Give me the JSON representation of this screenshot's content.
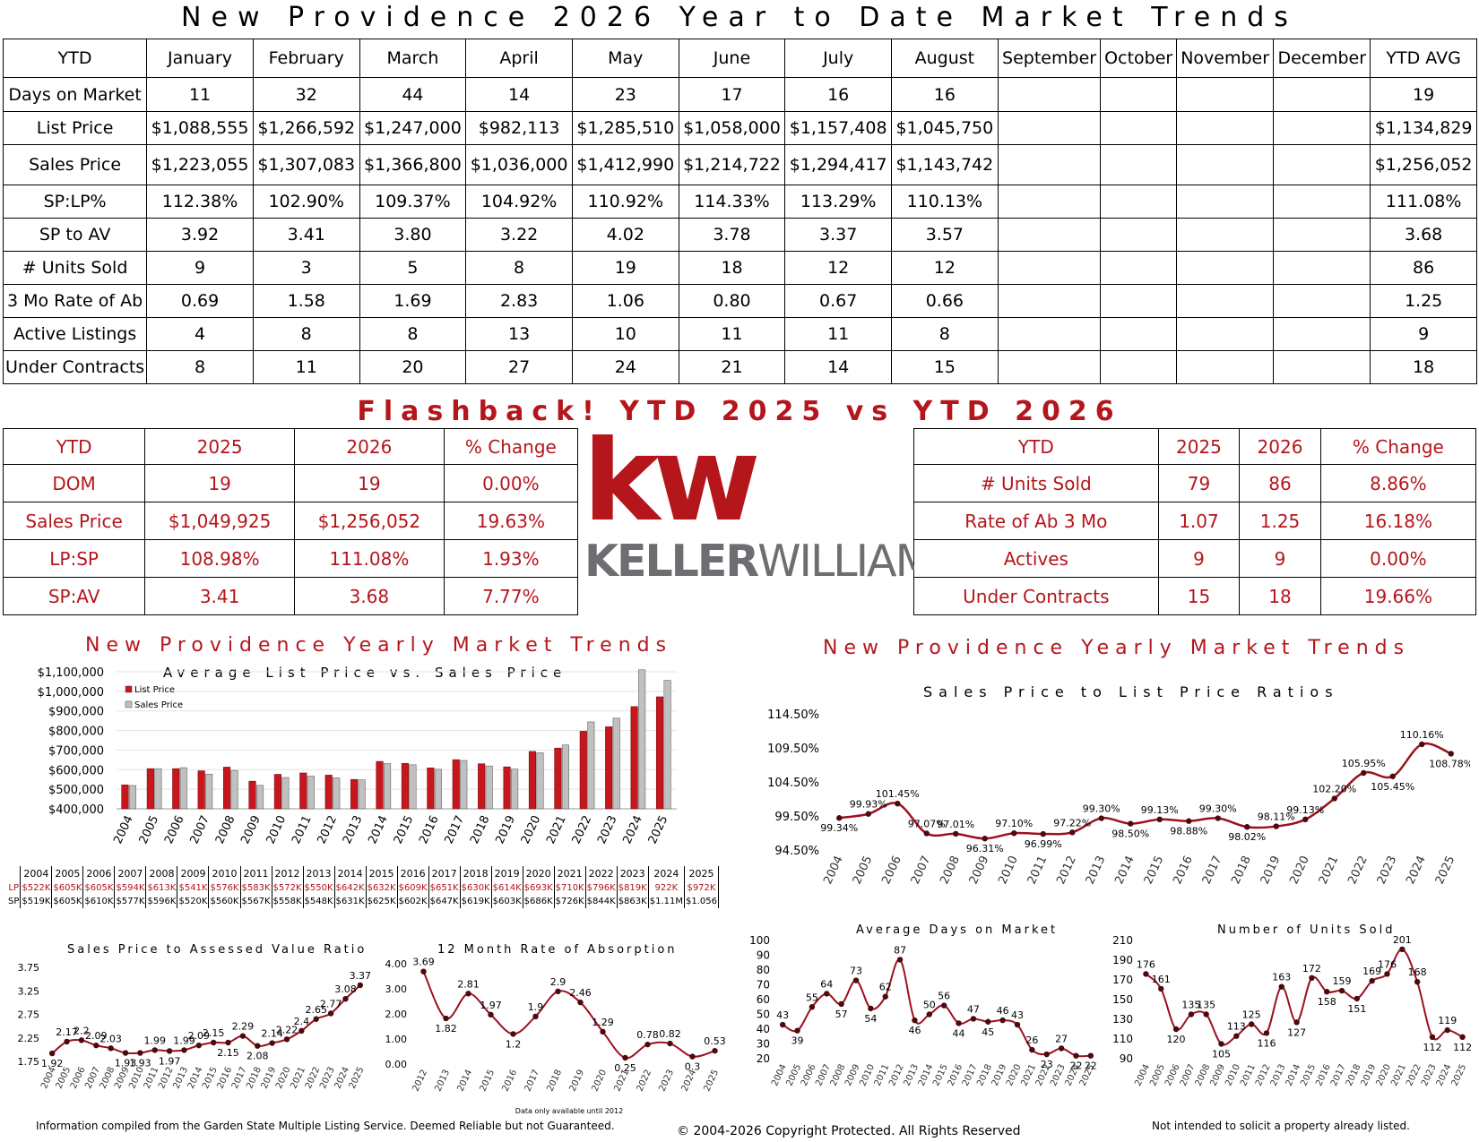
{
  "title": "New Providence 2026 Year to Date Market Trends",
  "ytd": {
    "headers": [
      "YTD",
      "January",
      "February",
      "March",
      "April",
      "May",
      "June",
      "July",
      "August",
      "September",
      "October",
      "November",
      "December",
      "YTD AVG"
    ],
    "rows": [
      {
        "label": "Days on Market",
        "values": [
          "11",
          "32",
          "44",
          "14",
          "23",
          "17",
          "16",
          "16",
          "",
          "",
          "",
          "",
          "19"
        ]
      },
      {
        "label": "List Price",
        "values": [
          "$1,088,555",
          "$1,266,592",
          "$1,247,000",
          "$982,113",
          "$1,285,510",
          "$1,058,000",
          "$1,157,408",
          "$1,045,750",
          "",
          "",
          "",
          "",
          "$1,134,829"
        ]
      },
      {
        "label": "Sales Price",
        "values": [
          "$1,223,055",
          "$1,307,083",
          "$1,366,800",
          "$1,036,000",
          "$1,412,990",
          "$1,214,722",
          "$1,294,417",
          "$1,143,742",
          "",
          "",
          "",
          "",
          "$1,256,052"
        ]
      },
      {
        "label": "SP:LP%",
        "values": [
          "112.38%",
          "102.90%",
          "109.37%",
          "104.92%",
          "110.92%",
          "114.33%",
          "113.29%",
          "110.13%",
          "",
          "",
          "",
          "",
          "111.08%"
        ]
      },
      {
        "label": "SP to AV",
        "values": [
          "3.92",
          "3.41",
          "3.80",
          "3.22",
          "4.02",
          "3.78",
          "3.37",
          "3.57",
          "",
          "",
          "",
          "",
          "3.68"
        ]
      },
      {
        "label": "# Units Sold",
        "values": [
          "9",
          "3",
          "5",
          "8",
          "19",
          "18",
          "12",
          "12",
          "",
          "",
          "",
          "",
          "86"
        ]
      },
      {
        "label": "3 Mo Rate of Ab",
        "values": [
          "0.69",
          "1.58",
          "1.69",
          "2.83",
          "1.06",
          "0.80",
          "0.67",
          "0.66",
          "",
          "",
          "",
          "",
          "1.25"
        ]
      },
      {
        "label": "Active Listings",
        "values": [
          "4",
          "8",
          "8",
          "13",
          "10",
          "11",
          "11",
          "8",
          "",
          "",
          "",
          "",
          "9"
        ]
      },
      {
        "label": "Under Contracts",
        "values": [
          "8",
          "11",
          "20",
          "27",
          "24",
          "21",
          "14",
          "15",
          "",
          "",
          "",
          "",
          "18"
        ]
      }
    ]
  },
  "flashback": {
    "title": "Flashback! YTD 2025 vs YTD 2026",
    "headers": [
      "YTD",
      "2025",
      "2026",
      "% Change"
    ],
    "left": [
      {
        "label": "DOM",
        "y2025": "19",
        "y2026": "19",
        "change": "0.00%"
      },
      {
        "label": "Sales Price",
        "y2025": "$1,049,925",
        "y2026": "$1,256,052",
        "change": "19.63%"
      },
      {
        "label": "LP:SP",
        "y2025": "108.98%",
        "y2026": "111.08%",
        "change": "1.93%"
      },
      {
        "label": "SP:AV",
        "y2025": "3.41",
        "y2026": "3.68",
        "change": "7.77%"
      }
    ],
    "right": [
      {
        "label": "# Units Sold",
        "y2025": "79",
        "y2026": "86",
        "change": "8.86%"
      },
      {
        "label": "Rate of Ab 3 Mo",
        "y2025": "1.07",
        "y2026": "1.25",
        "change": "16.18%"
      },
      {
        "label": "Actives",
        "y2025": "9",
        "y2026": "9",
        "change": "0.00%"
      },
      {
        "label": "Under Contracts",
        "y2025": "15",
        "y2026": "18",
        "change": "19.66%"
      }
    ]
  },
  "logo": {
    "mark": "kw",
    "brand_a": "KELLER",
    "brand_b": "WILLIAMS",
    "color_red": "#b4161c",
    "color_gray": "#6d6e71"
  },
  "sections": {
    "left_title": "New Providence Yearly Market Trends",
    "right_title": "New Providence Yearly Market Trends"
  },
  "lpsp_table": {
    "years": [
      "2004",
      "2005",
      "2006",
      "2007",
      "2008",
      "2009",
      "2010",
      "2011",
      "2012",
      "2013",
      "2014",
      "2015",
      "2016",
      "2017",
      "2018",
      "2019",
      "2020",
      "2021",
      "2022",
      "2023",
      "2024",
      "2025"
    ],
    "lp_label": "LP",
    "sp_label": "SP",
    "lp": [
      "$522K",
      "$605K",
      "$605K",
      "$594K",
      "$613K",
      "$541K",
      "$576K",
      "$583K",
      "$572K",
      "$550K",
      "$642K",
      "$632K",
      "$609K",
      "$651K",
      "$630K",
      "$614K",
      "$693K",
      "$710K",
      "$796K",
      "$819K",
      "922K",
      "$972K"
    ],
    "sp": [
      "$519K",
      "$605K",
      "$610K",
      "$577K",
      "$596K",
      "$520K",
      "$560K",
      "$567K",
      "$558K",
      "$548K",
      "$631K",
      "$625K",
      "$602K",
      "$647K",
      "$619K",
      "$603K",
      "$686K",
      "$726K",
      "$844K",
      "$863K",
      "$1.11M",
      "$1.056"
    ]
  },
  "footer": {
    "left": "Information compiled from the Garden State Multiple Listing Service.  Deemed Reliable but not Guaranteed.",
    "center": "© 2004-2026 Copyright Protected.  All Rights Reserved",
    "right": "Not intended to solicit a property already listed."
  },
  "chart_data": [
    {
      "type": "bar",
      "title": "Average List Price vs. Sales Price",
      "categories": [
        "2004",
        "2005",
        "2006",
        "2007",
        "2008",
        "2009",
        "2010",
        "2011",
        "2012",
        "2013",
        "2014",
        "2015",
        "2016",
        "2017",
        "2018",
        "2019",
        "2020",
        "2021",
        "2022",
        "2023",
        "2024",
        "2025"
      ],
      "series": [
        {
          "name": "List Price",
          "color": "#c8161d",
          "values": [
            522000,
            605000,
            605000,
            594000,
            613000,
            541000,
            576000,
            583000,
            572000,
            550000,
            642000,
            632000,
            609000,
            651000,
            630000,
            614000,
            693000,
            710000,
            796000,
            819000,
            922000,
            972000
          ]
        },
        {
          "name": "Sales Price",
          "color": "#c0c0c0",
          "values": [
            519000,
            605000,
            610000,
            577000,
            596000,
            520000,
            560000,
            567000,
            558000,
            548000,
            631000,
            625000,
            602000,
            647000,
            619000,
            603000,
            686000,
            726000,
            844000,
            863000,
            1110000,
            1056000
          ]
        }
      ],
      "yticks": [
        "$1,100,000",
        "$1,000,000",
        "$900,000",
        "$800,000",
        "$700,000",
        "$600,000",
        "$500,000",
        "$400,000"
      ],
      "ylim": [
        400000,
        1100000
      ],
      "legend": "top-left"
    },
    {
      "type": "line",
      "title": "Sales Price to List Price Ratios",
      "x": [
        "2004",
        "2005",
        "2006",
        "2007",
        "2008",
        "2009",
        "2010",
        "2011",
        "2012",
        "2013",
        "2014",
        "2015",
        "2016",
        "2017",
        "2018",
        "2019",
        "2020",
        "2021",
        "2022",
        "2023",
        "2024",
        "2025"
      ],
      "values": [
        99.34,
        99.93,
        101.45,
        97.07,
        97.01,
        96.31,
        97.1,
        96.99,
        97.22,
        99.3,
        98.5,
        99.13,
        98.88,
        99.3,
        98.02,
        98.11,
        99.13,
        102.2,
        105.95,
        105.45,
        110.16,
        108.78
      ],
      "labels": [
        "99.34%",
        "99.93%",
        "101.45%",
        "97.07%",
        "97.01%",
        "96.31%",
        "97.10%",
        "96.99%",
        "97.22%",
        "99.30%",
        "98.50%",
        "99.13%",
        "98.88%",
        "99.30%",
        "98.02%",
        "98.11%",
        "99.13%",
        "102.20%",
        "105.95%",
        "105.45%",
        "110.16%",
        "108.78%"
      ],
      "yticks": [
        "114.50%",
        "109.50%",
        "104.50%",
        "99.50%",
        "94.50%"
      ],
      "ylim": [
        94.5,
        114.5
      ],
      "color": "#9b111e"
    },
    {
      "type": "line",
      "title": "Sales Price to Assessed Value Ratio",
      "x": [
        "2004",
        "2005",
        "2006",
        "2007",
        "2008",
        "2009",
        "2010",
        "2011",
        "2012",
        "2013",
        "2014",
        "2015",
        "2016",
        "2017",
        "2018",
        "2019",
        "2020",
        "2021",
        "2022",
        "2023",
        "2024",
        "2025"
      ],
      "values": [
        1.92,
        2.17,
        2.2,
        2.09,
        2.03,
        1.93,
        1.93,
        1.99,
        1.97,
        1.99,
        2.09,
        2.15,
        2.15,
        2.29,
        2.08,
        2.14,
        2.22,
        2.4,
        2.65,
        2.77,
        3.08,
        3.37
      ],
      "yticks": [
        "3.75",
        "3.25",
        "2.75",
        "2.25",
        "1.75"
      ],
      "ylim": [
        1.75,
        3.75
      ],
      "color": "#9b111e"
    },
    {
      "type": "line",
      "title": "12 Month Rate of Absorption",
      "note": "Data only available until 2012",
      "x": [
        "2012",
        "2013",
        "2014",
        "2015",
        "2016",
        "2017",
        "2018",
        "2019",
        "2020",
        "2021",
        "2022",
        "2023",
        "2024",
        "2025"
      ],
      "values": [
        3.69,
        1.82,
        2.81,
        1.97,
        1.2,
        1.9,
        2.9,
        2.46,
        1.29,
        0.25,
        0.78,
        0.82,
        0.3,
        0.53
      ],
      "yticks": [
        "4.00",
        "3.00",
        "2.00",
        "1.00",
        "0.00"
      ],
      "ylim": [
        0,
        4
      ],
      "color": "#9b111e"
    },
    {
      "type": "line",
      "title": "Average Days on Market",
      "x": [
        "2004",
        "2005",
        "2006",
        "2007",
        "2008",
        "2009",
        "2010",
        "2011",
        "2012",
        "2013",
        "2014",
        "2015",
        "2016",
        "2017",
        "2018",
        "2019",
        "2020",
        "2021",
        "2022",
        "2023",
        "2024",
        "2025"
      ],
      "values": [
        43,
        39,
        55,
        64,
        57,
        73,
        54,
        62,
        87,
        46,
        50,
        56,
        44,
        47,
        45,
        46,
        43,
        26,
        23,
        27,
        22,
        22
      ],
      "yticks": [
        "100",
        "90",
        "80",
        "70",
        "60",
        "50",
        "40",
        "30",
        "20"
      ],
      "ylim": [
        20,
        100
      ],
      "color": "#9b111e"
    },
    {
      "type": "line",
      "title": "Number of Units Sold",
      "x": [
        "2004",
        "2005",
        "2006",
        "2007",
        "2008",
        "2009",
        "2010",
        "2011",
        "2012",
        "2013",
        "2014",
        "2015",
        "2016",
        "2017",
        "2018",
        "2019",
        "2020",
        "2021",
        "2022",
        "2023",
        "2024",
        "2025"
      ],
      "values": [
        176,
        161,
        120,
        135,
        135,
        105,
        113,
        125,
        116,
        163,
        127,
        172,
        158,
        159,
        151,
        169,
        176,
        201,
        168,
        112,
        119,
        112
      ],
      "yticks": [
        "210",
        "190",
        "170",
        "150",
        "130",
        "110",
        "90"
      ],
      "ylim": [
        90,
        210
      ],
      "color": "#9b111e"
    }
  ]
}
